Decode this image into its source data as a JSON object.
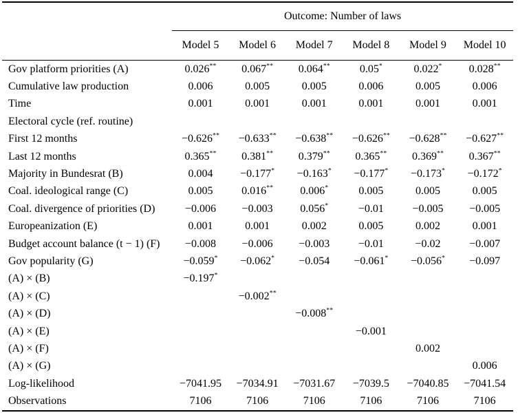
{
  "table": {
    "title": "Outcome: Number of laws",
    "column_headers": [
      "Model 5",
      "Model 6",
      "Model 7",
      "Model 8",
      "Model 9",
      "Model 10"
    ],
    "rows": [
      {
        "label": "Gov platform priorities (A)",
        "values": [
          "0.026**",
          "0.067**",
          "0.064**",
          "0.05*",
          "0.022*",
          "0.028**"
        ]
      },
      {
        "label": "Cumulative law production",
        "values": [
          "0.006",
          "0.005",
          "0.005",
          "0.006",
          "0.005",
          "0.006"
        ]
      },
      {
        "label": "Time",
        "values": [
          "0.001",
          "0.001",
          "0.001",
          "0.001",
          "0.001",
          "0.001"
        ]
      },
      {
        "label": "Electoral cycle (ref. routine)",
        "values": [
          "",
          "",
          "",
          "",
          "",
          ""
        ]
      },
      {
        "label": "First 12 months",
        "values": [
          "−0.626**",
          "−0.633**",
          "−0.638**",
          "−0.626**",
          "−0.628**",
          "−0.627**"
        ]
      },
      {
        "label": "Last 12 months",
        "values": [
          "0.365**",
          "0.381**",
          "0.379**",
          "0.365**",
          "0.369**",
          "0.367**"
        ]
      },
      {
        "label": "Majority in Bundesrat (B)",
        "values": [
          "0.004",
          "−0.177*",
          "−0.163*",
          "−0.177*",
          "−0.173*",
          "−0.172*"
        ]
      },
      {
        "label": "Coal. ideological range (C)",
        "values": [
          "0.005",
          "0.016**",
          "0.006*",
          "0.005",
          "0.005",
          "0.005"
        ]
      },
      {
        "label": "Coal. divergence of priorities (D)",
        "values": [
          "−0.006",
          "−0.003",
          "0.056*",
          "−0.01",
          "−0.005",
          "−0.005"
        ]
      },
      {
        "label": "Europeanization (E)",
        "values": [
          "0.001",
          "0.001",
          "0.002",
          "0.005",
          "0.002",
          "0.001"
        ]
      },
      {
        "label": "Budget account balance (t − 1) (F)",
        "values": [
          "−0.008",
          "−0.006",
          "−0.003",
          "−0.01",
          "−0.02",
          "−0.007"
        ]
      },
      {
        "label": "Gov popularity (G)",
        "values": [
          "−0.059*",
          "−0.062*",
          "−0.054",
          "−0.061*",
          "−0.056*",
          "−0.097"
        ]
      },
      {
        "label": "(A) × (B)",
        "values": [
          "−0.197*",
          "",
          "",
          "",
          "",
          ""
        ]
      },
      {
        "label": "(A) × (C)",
        "values": [
          "",
          "−0.002**",
          "",
          "",
          "",
          ""
        ]
      },
      {
        "label": "(A) × (D)",
        "values": [
          "",
          "",
          "−0.008**",
          "",
          "",
          ""
        ]
      },
      {
        "label": "(A) × (E)",
        "values": [
          "",
          "",
          "",
          "−0.001",
          "",
          ""
        ]
      },
      {
        "label": "(A) × (F)",
        "values": [
          "",
          "",
          "",
          "",
          "0.002",
          ""
        ]
      },
      {
        "label": "(A) × (G)",
        "values": [
          "",
          "",
          "",
          "",
          "",
          "0.006"
        ]
      },
      {
        "label": "Log-likelihood",
        "values": [
          "−7041.95",
          "−7034.91",
          "−7031.67",
          "−7039.5",
          "−7040.85",
          "−7041.54"
        ]
      },
      {
        "label": "Observations",
        "values": [
          "7106",
          "7106",
          "7106",
          "7106",
          "7106",
          "7106"
        ]
      }
    ]
  }
}
